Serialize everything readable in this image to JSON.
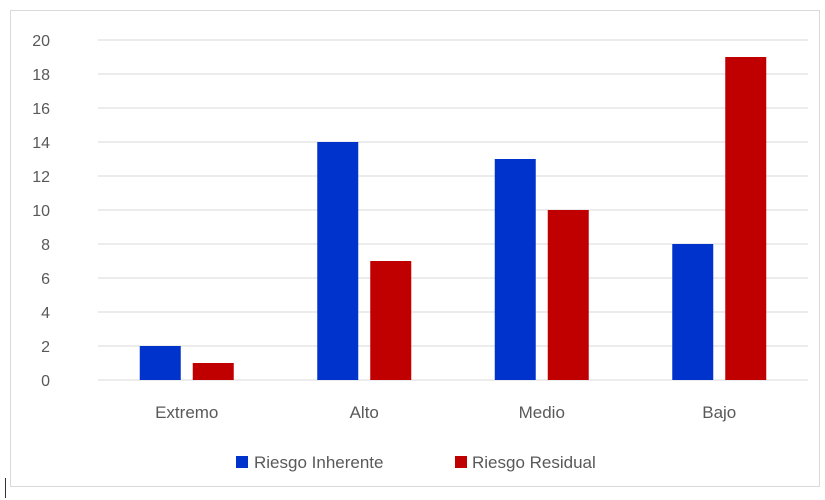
{
  "chart_data": {
    "type": "bar",
    "categories": [
      "Extremo",
      "Alto",
      "Medio",
      "Bajo"
    ],
    "series": [
      {
        "name": "Riesgo Inherente",
        "color": "#0033cc",
        "values": [
          2,
          14,
          13,
          8
        ]
      },
      {
        "name": "Riesgo Residual",
        "color": "#c00000",
        "values": [
          1,
          7,
          10,
          19
        ]
      }
    ],
    "y_ticks": [
      0,
      2,
      4,
      6,
      8,
      10,
      12,
      14,
      16,
      18,
      20
    ],
    "ylim": [
      0,
      20
    ],
    "grid": true,
    "legend_position": "bottom"
  }
}
